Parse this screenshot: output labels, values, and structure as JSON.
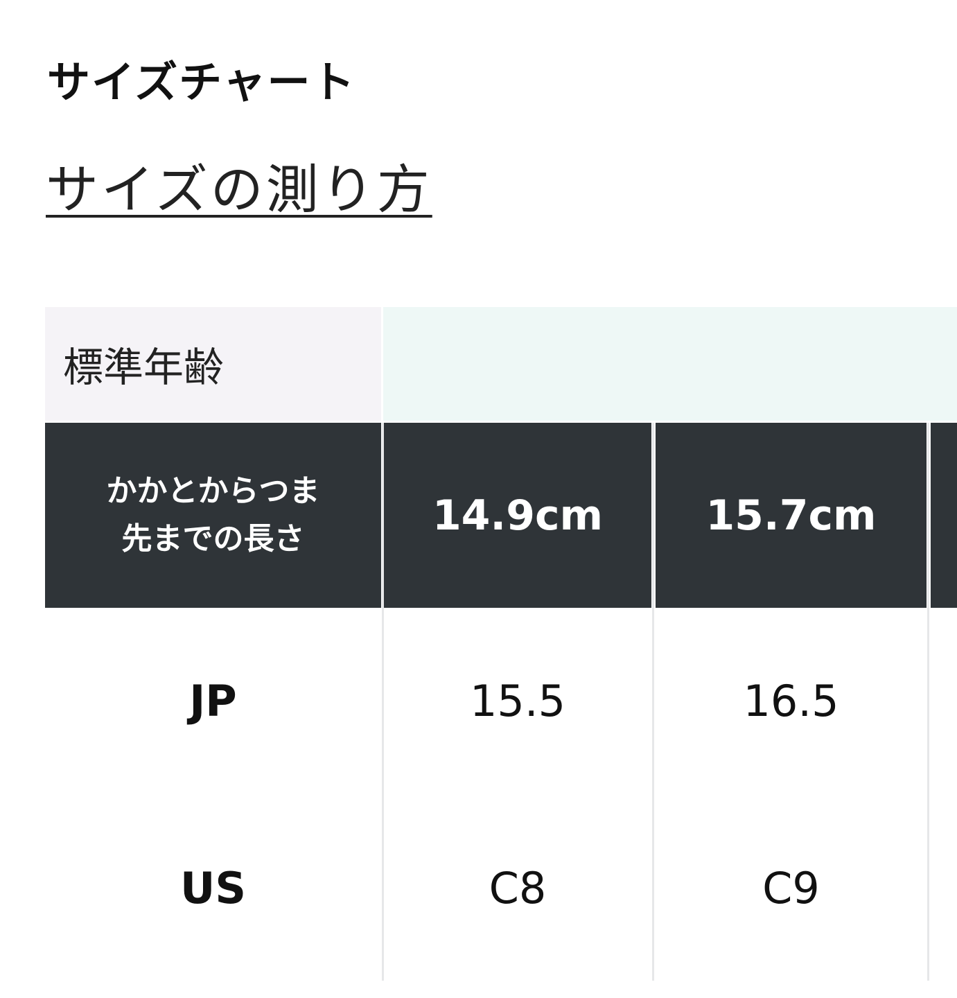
{
  "title": "サイズチャート",
  "measure_link": "サイズの測り方",
  "table": {
    "age_label": "標準年齢",
    "length_label": "かかとからつま先までの長さ",
    "length_label_lines": [
      "かかとからつま",
      "先までの長さ"
    ],
    "lengths": [
      "14.9cm",
      "15.7cm"
    ],
    "rows": [
      {
        "label": "JP",
        "values": [
          "15.5",
          "16.5"
        ]
      },
      {
        "label": "US",
        "values": [
          "C8",
          "C9"
        ]
      }
    ]
  },
  "colors": {
    "header_dark": "#2f3438",
    "age_label_bg": "#f5f3f7",
    "age_value_bg": "#eef8f6"
  }
}
